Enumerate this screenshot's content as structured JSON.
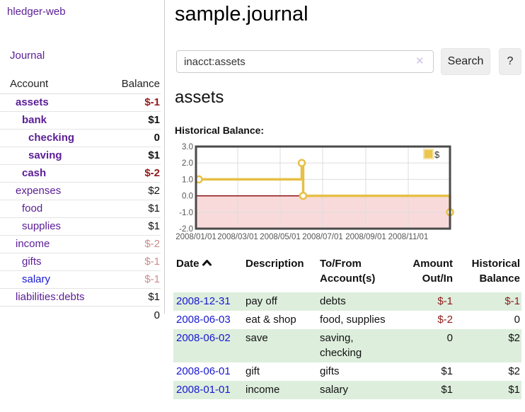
{
  "app": {
    "brand": "hledger-web",
    "nav_journal": "Journal"
  },
  "sidebar": {
    "header": {
      "account": "Account",
      "balance": "Balance"
    },
    "accounts": [
      {
        "label": "assets",
        "depth": 0,
        "bold": true,
        "balance": "$-1"
      },
      {
        "label": "bank",
        "depth": 1,
        "bold": true,
        "balance": "$1"
      },
      {
        "label": "checking",
        "depth": 2,
        "bold": true,
        "balance": "0"
      },
      {
        "label": "saving",
        "depth": 2,
        "bold": true,
        "balance": "$1"
      },
      {
        "label": "cash",
        "depth": 1,
        "bold": true,
        "balance": "$-2"
      },
      {
        "label": "expenses",
        "depth": 0,
        "bold": false,
        "balance": "$2"
      },
      {
        "label": "food",
        "depth": 1,
        "bold": false,
        "balance": "$1"
      },
      {
        "label": "supplies",
        "depth": 1,
        "bold": false,
        "balance": "$1"
      },
      {
        "label": "income",
        "depth": 0,
        "bold": false,
        "balance": "$-2"
      },
      {
        "label": "gifts",
        "depth": 1,
        "bold": false,
        "balance": "$-1"
      },
      {
        "label": "salary",
        "depth": 1,
        "bold": false,
        "balance": "$-1",
        "variant": "blue"
      },
      {
        "label": "liabilities:debts",
        "depth": 0,
        "bold": false,
        "balance": "$1"
      }
    ],
    "total": "0"
  },
  "main": {
    "title": "sample.journal",
    "search": {
      "value": "inacct:assets",
      "clear_icon": "✕",
      "button": "Search",
      "help_button": "?"
    },
    "account_heading": "assets",
    "chart_label": "Historical Balance:"
  },
  "chart_data": {
    "type": "line",
    "title": "Historical Balance:",
    "step": true,
    "series": [
      {
        "name": "$",
        "points": [
          [
            "2008-01-01",
            1.0
          ],
          [
            "2008-06-01",
            2.0
          ],
          [
            "2008-06-03",
            0.0
          ],
          [
            "2008-12-31",
            -1.0
          ]
        ]
      }
    ],
    "x_start": "2008-01-01",
    "x_end": "2008-12-31",
    "ylim": [
      -2.0,
      3.0
    ],
    "yticks": [
      "3.0",
      "2.0",
      "1.0",
      "0.0",
      "-1.0",
      "-2.0"
    ],
    "xticks": [
      "2008/01/01",
      "2008/03/01",
      "2008/05/01",
      "2008/07/01",
      "2008/09/01",
      "2008/11/01"
    ],
    "legend": {
      "label": "$",
      "position": "top-right"
    },
    "colors": {
      "line": "#e6c047",
      "point_fill": "#fffdf5",
      "legend_fill": "#ecc64d",
      "legend_border": "#f3e3a1",
      "zero_line": "#8b0f0f",
      "negative_region": "#f9dada",
      "grid": "#dddddd",
      "border": "#4a4a4a",
      "tick_text": "#555555"
    }
  },
  "register": {
    "headers": [
      "Date",
      "Description",
      "To/From Account(s)",
      "Amount Out/In",
      "Historical Balance"
    ],
    "sort_icon": "chevron-up",
    "rows": [
      {
        "date": "2008-12-31",
        "description": "pay off",
        "accounts": "debts",
        "amount": "$-1",
        "balance": "$-1"
      },
      {
        "date": "2008-06-03",
        "description": "eat & shop",
        "accounts": "food, supplies",
        "amount": "$-2",
        "balance": "0"
      },
      {
        "date": "2008-06-02",
        "description": "save",
        "accounts": "saving, checking",
        "amount": "0",
        "balance": "$2"
      },
      {
        "date": "2008-06-01",
        "description": "gift",
        "accounts": "gifts",
        "amount": "$1",
        "balance": "$2"
      },
      {
        "date": "2008-01-01",
        "description": "income",
        "accounts": "salary",
        "amount": "$1",
        "balance": "$1"
      }
    ]
  }
}
